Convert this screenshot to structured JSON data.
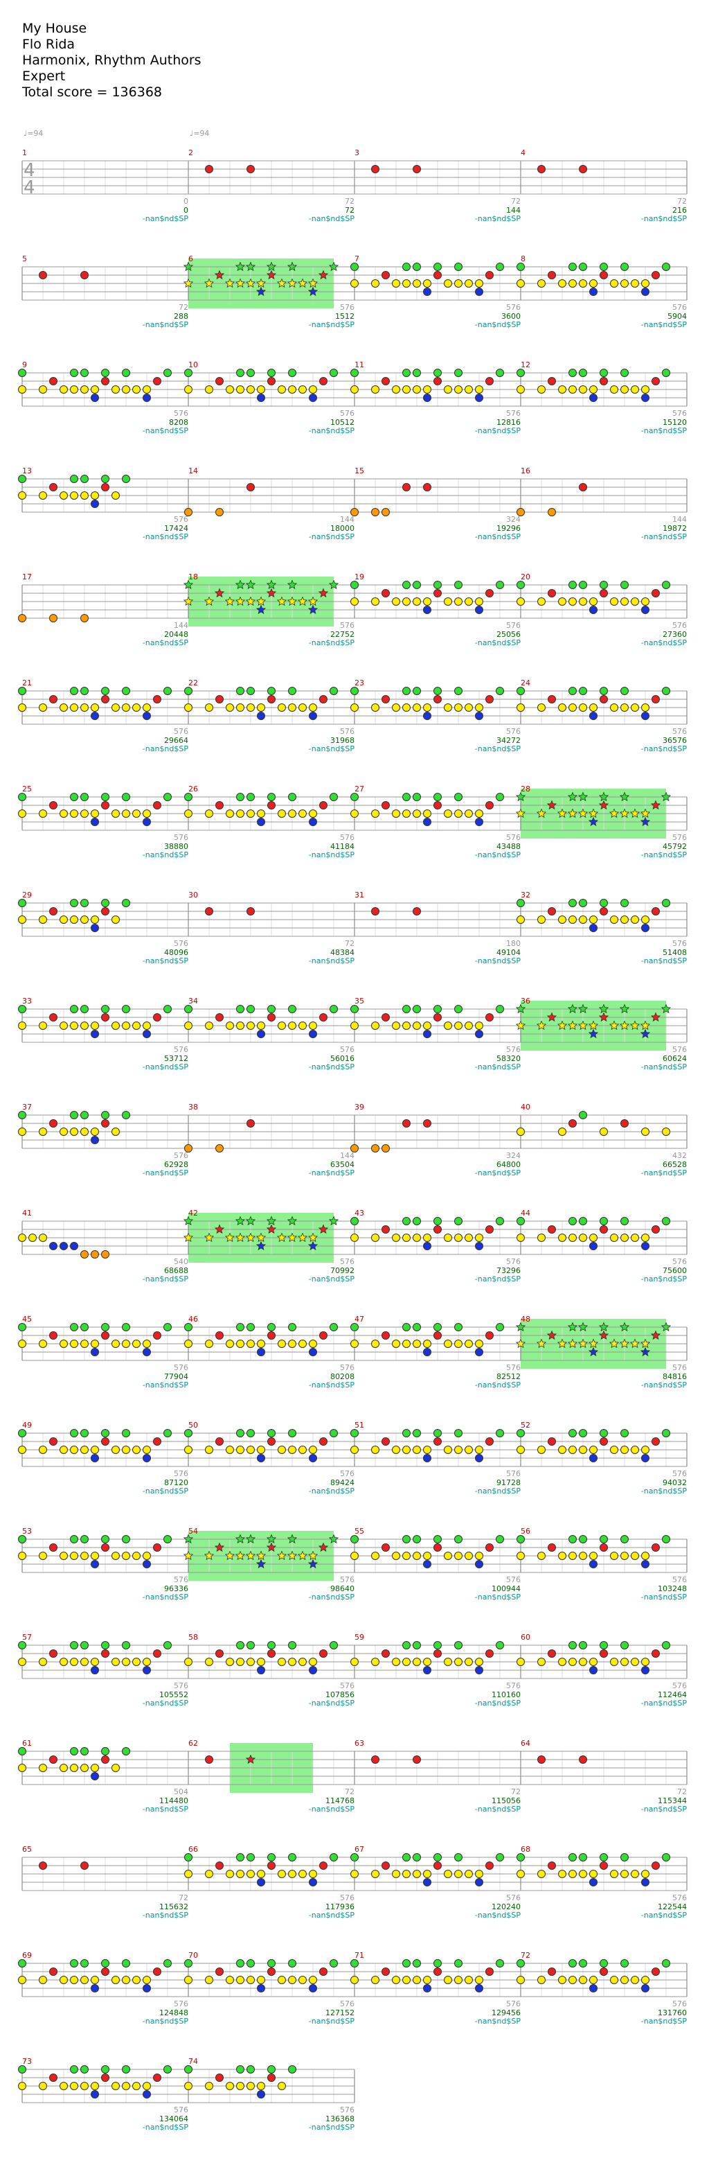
{
  "song": {
    "title": "My House",
    "artist": "Flo Rida",
    "charter": "Harmonix, Rhythm Authors",
    "difficulty": "Expert",
    "total_score_label": "Total score = 136368"
  },
  "time_signature": [
    "4",
    "4"
  ],
  "tempo_label": "♩=94",
  "sp_label": "-nan$nd$SP",
  "colors": {
    "green": "#33dd33",
    "red": "#e82020",
    "yellow": "#ffee00",
    "blue": "#1a33d9",
    "orange": "#ff9900",
    "starpower": "#8ff08f",
    "measure_number": "#cc0000",
    "score": "#006600",
    "sp_text": "#009999"
  },
  "patterns": {
    "A": [
      [
        0,
        "g"
      ],
      [
        0,
        "y"
      ],
      [
        1,
        "y"
      ],
      [
        1.5,
        "r"
      ],
      [
        2,
        "y"
      ],
      [
        2.5,
        "g"
      ],
      [
        2.5,
        "y"
      ],
      [
        3,
        "y"
      ],
      [
        3,
        "g"
      ],
      [
        3.5,
        "y"
      ],
      [
        3.5,
        "b"
      ],
      [
        4,
        "g"
      ],
      [
        4,
        "r"
      ],
      [
        4.5,
        "y"
      ],
      [
        5,
        "g"
      ],
      [
        5,
        "y"
      ],
      [
        5.5,
        "y"
      ],
      [
        6,
        "y"
      ],
      [
        6,
        "b"
      ],
      [
        6.5,
        "r"
      ],
      [
        7,
        "g"
      ]
    ],
    "A2": [
      [
        0,
        "y"
      ],
      [
        1,
        "y"
      ],
      [
        1.5,
        "r"
      ],
      [
        2,
        "y"
      ],
      [
        2.5,
        "g"
      ],
      [
        2.5,
        "y"
      ],
      [
        3,
        "y"
      ],
      [
        3,
        "g"
      ],
      [
        3.5,
        "y"
      ],
      [
        3.5,
        "b"
      ],
      [
        4,
        "g"
      ],
      [
        4,
        "r"
      ],
      [
        4.5,
        "y"
      ],
      [
        5,
        "g"
      ],
      [
        5,
        "y"
      ],
      [
        5.5,
        "y"
      ],
      [
        6,
        "y"
      ],
      [
        6,
        "b"
      ],
      [
        6.5,
        "r"
      ],
      [
        7,
        "g"
      ]
    ],
    "A_end": [
      [
        0,
        "g"
      ],
      [
        0,
        "y"
      ],
      [
        1,
        "y"
      ],
      [
        1.5,
        "r"
      ],
      [
        2,
        "y"
      ],
      [
        2.5,
        "g"
      ],
      [
        2.5,
        "y"
      ],
      [
        3,
        "y"
      ],
      [
        3,
        "g"
      ],
      [
        3.5,
        "y"
      ],
      [
        3.5,
        "b"
      ],
      [
        4,
        "g"
      ],
      [
        4,
        "r"
      ],
      [
        4.5,
        "y"
      ],
      [
        5,
        "g"
      ]
    ],
    "B": [
      [
        1,
        "r"
      ],
      [
        3,
        "r"
      ]
    ],
    "C": [
      [
        0,
        "o"
      ],
      [
        1.5,
        "o"
      ],
      [
        3,
        "r"
      ]
    ],
    "D": [
      [
        0,
        "o"
      ],
      [
        1,
        "o"
      ],
      [
        1.5,
        "o"
      ],
      [
        2.5,
        "r"
      ],
      [
        3.5,
        "r"
      ]
    ],
    "E": [
      [
        0,
        "y"
      ],
      [
        2,
        "y"
      ],
      [
        2.5,
        "r"
      ],
      [
        3,
        "g"
      ],
      [
        4,
        "y"
      ],
      [
        5,
        "r"
      ],
      [
        6,
        "y"
      ],
      [
        7,
        "y"
      ]
    ],
    "F": [
      [
        0,
        "o"
      ],
      [
        1.5,
        "o"
      ],
      [
        3,
        "o"
      ]
    ],
    "G": [
      [
        0,
        "y"
      ],
      [
        0.5,
        "y"
      ],
      [
        1,
        "y"
      ],
      [
        1.5,
        "b"
      ],
      [
        2,
        "b"
      ],
      [
        2.5,
        "b"
      ],
      [
        3,
        "o"
      ],
      [
        3.5,
        "o"
      ],
      [
        4,
        "o"
      ]
    ]
  },
  "rows": [
    {
      "measures": [
        1,
        2,
        3,
        4
      ],
      "ts": true,
      "tempo_first": true,
      "tempo_second": true,
      "notes": [
        [],
        "B",
        "B",
        "B"
      ],
      "sp": [],
      "labels": [
        [
          "0",
          "0"
        ],
        [
          "72",
          "72"
        ],
        [
          "72",
          "144"
        ],
        [
          "72",
          "216"
        ]
      ]
    },
    {
      "measures": [
        5,
        6,
        7,
        8
      ],
      "notes": [
        "B",
        "A",
        "A",
        "A"
      ],
      "sp": [
        [
          1,
          1.875
        ]
      ],
      "labels": [
        [
          "72",
          "288"
        ],
        [
          "576",
          "1512"
        ],
        [
          "576",
          "3600"
        ],
        [
          "576",
          "5904"
        ]
      ]
    },
    {
      "measures": [
        9,
        10,
        11,
        12
      ],
      "notes": [
        "A",
        "A",
        "A",
        "A"
      ],
      "sp": [],
      "labels": [
        [
          "576",
          "8208"
        ],
        [
          "576",
          "10512"
        ],
        [
          "576",
          "12816"
        ],
        [
          "576",
          "15120"
        ]
      ]
    },
    {
      "measures": [
        13,
        14,
        15,
        16
      ],
      "notes": [
        "A_end",
        "C",
        "D",
        "C"
      ],
      "sp": [],
      "labels": [
        [
          "576",
          "17424"
        ],
        [
          "144",
          "18000"
        ],
        [
          "324",
          "19296"
        ],
        [
          "144",
          "19872"
        ]
      ]
    },
    {
      "measures": [
        17,
        18,
        19,
        20
      ],
      "notes": [
        "F",
        "A",
        "A",
        "A"
      ],
      "sp": [
        [
          1,
          1.875
        ]
      ],
      "labels": [
        [
          "144",
          "20448"
        ],
        [
          "576",
          "22752"
        ],
        [
          "576",
          "25056"
        ],
        [
          "576",
          "27360"
        ]
      ]
    },
    {
      "measures": [
        21,
        22,
        23,
        24
      ],
      "notes": [
        "A",
        "A",
        "A",
        "A"
      ],
      "sp": [],
      "labels": [
        [
          "576",
          "29664"
        ],
        [
          "576",
          "31968"
        ],
        [
          "576",
          "34272"
        ],
        [
          "576",
          "36576"
        ]
      ]
    },
    {
      "measures": [
        25,
        26,
        27,
        28
      ],
      "notes": [
        "A",
        "A",
        "A",
        "A"
      ],
      "sp": [
        [
          3,
          3.875
        ]
      ],
      "labels": [
        [
          "576",
          "38880"
        ],
        [
          "576",
          "41184"
        ],
        [
          "576",
          "43488"
        ],
        [
          "576",
          "45792"
        ]
      ]
    },
    {
      "measures": [
        29,
        30,
        31,
        32
      ],
      "notes": [
        "A_end",
        "B",
        "B",
        "A"
      ],
      "sp": [],
      "labels": [
        [
          "576",
          "48096"
        ],
        [
          "72",
          "48384"
        ],
        [
          "180",
          "49104"
        ],
        [
          "576",
          "51408"
        ]
      ]
    },
    {
      "measures": [
        33,
        34,
        35,
        36
      ],
      "notes": [
        "A",
        "A",
        "A",
        "A"
      ],
      "sp": [
        [
          3,
          3.875
        ]
      ],
      "labels": [
        [
          "576",
          "53712"
        ],
        [
          "576",
          "56016"
        ],
        [
          "576",
          "58320"
        ],
        [
          "576",
          "60624"
        ]
      ]
    },
    {
      "measures": [
        37,
        38,
        39,
        40
      ],
      "notes": [
        "A_end",
        "C",
        "D",
        "E"
      ],
      "sp": [],
      "labels": [
        [
          "576",
          "62928"
        ],
        [
          "144",
          "63504"
        ],
        [
          "324",
          "64800"
        ],
        [
          "432",
          "66528"
        ]
      ]
    },
    {
      "measures": [
        41,
        42,
        43,
        44
      ],
      "notes": [
        "G",
        "A",
        "A",
        "A"
      ],
      "sp": [
        [
          1,
          1.875
        ]
      ],
      "labels": [
        [
          "540",
          "68688"
        ],
        [
          "576",
          "70992"
        ],
        [
          "576",
          "73296"
        ],
        [
          "576",
          "75600"
        ]
      ]
    },
    {
      "measures": [
        45,
        46,
        47,
        48
      ],
      "notes": [
        "A",
        "A",
        "A",
        "A"
      ],
      "sp": [
        [
          3,
          3.875
        ]
      ],
      "labels": [
        [
          "576",
          "77904"
        ],
        [
          "576",
          "80208"
        ],
        [
          "576",
          "82512"
        ],
        [
          "576",
          "84816"
        ]
      ]
    },
    {
      "measures": [
        49,
        50,
        51,
        52
      ],
      "notes": [
        "A",
        "A",
        "A",
        "A"
      ],
      "sp": [],
      "labels": [
        [
          "576",
          "87120"
        ],
        [
          "576",
          "89424"
        ],
        [
          "576",
          "91728"
        ],
        [
          "576",
          "94032"
        ]
      ]
    },
    {
      "measures": [
        53,
        54,
        55,
        56
      ],
      "notes": [
        "A",
        "A",
        "A",
        "A"
      ],
      "sp": [
        [
          1,
          1.875
        ]
      ],
      "labels": [
        [
          "576",
          "96336"
        ],
        [
          "576",
          "98640"
        ],
        [
          "576",
          "100944"
        ],
        [
          "576",
          "103248"
        ]
      ]
    },
    {
      "measures": [
        57,
        58,
        59,
        60
      ],
      "notes": [
        "A",
        "A2",
        "A2",
        "A2"
      ],
      "sp": [],
      "labels": [
        [
          "576",
          "105552"
        ],
        [
          "576",
          "107856"
        ],
        [
          "576",
          "110160"
        ],
        [
          "576",
          "112464"
        ]
      ]
    },
    {
      "measures": [
        61,
        62,
        63,
        64
      ],
      "notes": [
        "A_end",
        "B",
        "B",
        "B"
      ],
      "sp": [
        [
          1.25,
          1.75
        ]
      ],
      "labels": [
        [
          "504",
          "114480"
        ],
        [
          "72",
          "114768"
        ],
        [
          "72",
          "115056"
        ],
        [
          "72",
          "115344"
        ]
      ]
    },
    {
      "measures": [
        65,
        66,
        67,
        68
      ],
      "notes": [
        "B",
        "A",
        "A",
        "A"
      ],
      "sp": [],
      "labels": [
        [
          "72",
          "115632"
        ],
        [
          "576",
          "117936"
        ],
        [
          "576",
          "120240"
        ],
        [
          "576",
          "122544"
        ]
      ]
    },
    {
      "measures": [
        69,
        70,
        71,
        72
      ],
      "notes": [
        "A",
        "A",
        "A",
        "A"
      ],
      "sp": [],
      "labels": [
        [
          "576",
          "124848"
        ],
        [
          "576",
          "127152"
        ],
        [
          "576",
          "129456"
        ],
        [
          "576",
          "131760"
        ]
      ]
    },
    {
      "measures": [
        73,
        74
      ],
      "notes": [
        "A",
        "A_end"
      ],
      "sp": [],
      "labels": [
        [
          "576",
          "134064"
        ],
        [
          "576",
          "136368"
        ]
      ]
    }
  ]
}
